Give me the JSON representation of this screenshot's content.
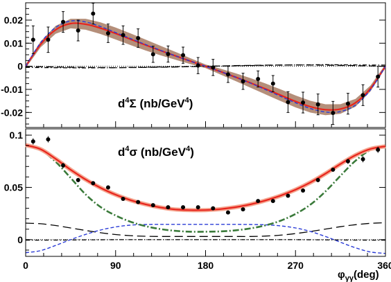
{
  "chart_data": [
    {
      "type": "scatter",
      "panel": "top",
      "label": {
        "prefix": "d",
        "sup1": "4",
        "symbol": "Σ",
        "unit": " (nb/GeV",
        "sup2": "4",
        "close": ")"
      },
      "xlim": [
        0,
        360
      ],
      "ylim": [
        -0.0265,
        0.0275
      ],
      "yticks": [
        {
          "v": 0.02,
          "label": "0.02"
        },
        {
          "v": 0.01,
          "label": "0.01"
        },
        {
          "v": 0,
          "label": "0"
        },
        {
          "v": -0.01,
          "label": "-0.01"
        },
        {
          "v": -0.02,
          "label": "-0.02"
        }
      ],
      "band_color": "#b58f7a",
      "points": [
        {
          "x": 7.5,
          "y": 0.0115,
          "err": 0.006
        },
        {
          "x": 22.5,
          "y": 0.0115,
          "err": 0.0055
        },
        {
          "x": 37.5,
          "y": 0.0192,
          "err": 0.0045
        },
        {
          "x": 52.5,
          "y": 0.0155,
          "err": 0.0045
        },
        {
          "x": 67.5,
          "y": 0.0228,
          "err": 0.0045
        },
        {
          "x": 82.5,
          "y": 0.0143,
          "err": 0.004
        },
        {
          "x": 97.5,
          "y": 0.0135,
          "err": 0.004
        },
        {
          "x": 112.5,
          "y": 0.0122,
          "err": 0.004
        },
        {
          "x": 127.5,
          "y": 0.0052,
          "err": 0.0035
        },
        {
          "x": 142.5,
          "y": 0.0053,
          "err": 0.0035
        },
        {
          "x": 157.5,
          "y": 0.0048,
          "err": 0.0035
        },
        {
          "x": 172.5,
          "y": 0.0003,
          "err": 0.0035
        },
        {
          "x": 187.5,
          "y": -0.0005,
          "err": 0.0035
        },
        {
          "x": 202.5,
          "y": -0.0035,
          "err": 0.0035
        },
        {
          "x": 217.5,
          "y": -0.0065,
          "err": 0.0035
        },
        {
          "x": 232.5,
          "y": -0.0055,
          "err": 0.0035
        },
        {
          "x": 247.5,
          "y": -0.0075,
          "err": 0.0035
        },
        {
          "x": 262.5,
          "y": -0.0155,
          "err": 0.0045
        },
        {
          "x": 277.5,
          "y": -0.0157,
          "err": 0.0045
        },
        {
          "x": 292.5,
          "y": -0.0165,
          "err": 0.0045
        },
        {
          "x": 307.5,
          "y": -0.0202,
          "err": 0.005
        },
        {
          "x": 322.5,
          "y": -0.0162,
          "err": 0.0045
        },
        {
          "x": 337.5,
          "y": -0.0125,
          "err": 0.0045
        },
        {
          "x": 352.5,
          "y": -0.0045,
          "err": 0.0045
        }
      ],
      "curves": {
        "full": {
          "x": [
            0,
            15,
            30,
            45,
            60,
            75,
            90,
            105,
            120,
            135,
            150,
            165,
            180,
            195,
            210,
            225,
            240,
            255,
            270,
            285,
            300,
            315,
            330,
            345,
            360
          ],
          "y": [
            0.0,
            0.0095,
            0.0158,
            0.0185,
            0.0182,
            0.0165,
            0.0142,
            0.0117,
            0.0092,
            0.0068,
            0.0045,
            0.0022,
            0.0,
            -0.0023,
            -0.0047,
            -0.0072,
            -0.0098,
            -0.0125,
            -0.0152,
            -0.0175,
            -0.0188,
            -0.0185,
            -0.0158,
            -0.0096,
            0.0
          ]
        },
        "alt": {
          "x": [
            0,
            15,
            30,
            45,
            60,
            75,
            90,
            105,
            120,
            135,
            150,
            165,
            180,
            195,
            210,
            225,
            240,
            255,
            270,
            285,
            300,
            315,
            330,
            345,
            360
          ],
          "y": [
            0.0,
            0.0102,
            0.0168,
            0.0196,
            0.0192,
            0.0172,
            0.0146,
            0.012,
            0.0094,
            0.0069,
            0.0045,
            0.0022,
            0.0,
            -0.0023,
            -0.0047,
            -0.0073,
            -0.0101,
            -0.013,
            -0.0158,
            -0.0183,
            -0.0198,
            -0.0196,
            -0.0168,
            -0.0102,
            0.0
          ]
        },
        "dashdot": {
          "x": [
            0,
            30,
            60,
            90,
            120,
            150,
            180,
            210,
            240,
            270,
            300,
            330,
            360
          ],
          "y": [
            -0.0005,
            -0.0006,
            -0.0007,
            -0.0006,
            -0.0004,
            -0.0002,
            0.0,
            0.0002,
            0.0004,
            0.0006,
            0.0007,
            0.0006,
            0.0005
          ]
        },
        "longdash": {
          "x": [
            0,
            30,
            60,
            90,
            120,
            150,
            180,
            210,
            240,
            270,
            300,
            330,
            360
          ],
          "y": [
            0.0,
            -0.0003,
            -0.0005,
            -0.0006,
            -0.0005,
            -0.0003,
            0.0,
            0.0003,
            0.0005,
            0.0006,
            0.0005,
            0.0003,
            0.0
          ]
        }
      }
    },
    {
      "type": "scatter",
      "panel": "bottom",
      "label": {
        "prefix": "d",
        "sup1": "4",
        "symbol": "σ",
        "unit": " (nb/GeV",
        "sup2": "4",
        "close": ")"
      },
      "xlim": [
        0,
        360
      ],
      "ylim": [
        -0.016,
        0.106
      ],
      "yticks": [
        {
          "v": 0.1,
          "label": "0.1"
        },
        {
          "v": 0.05,
          "label": "0.05"
        },
        {
          "v": 0,
          "label": "0"
        }
      ],
      "xticks": [
        {
          "v": 0,
          "label": "0"
        },
        {
          "v": 90,
          "label": "90"
        },
        {
          "v": 180,
          "label": "180"
        },
        {
          "v": 270,
          "label": "270"
        },
        {
          "v": 360,
          "label": "360"
        }
      ],
      "xlabel": {
        "phi": "φ",
        "sub": "γγ",
        "unit": "(deg)"
      },
      "points": [
        {
          "x": 7.5,
          "y": 0.094,
          "err": 0.003
        },
        {
          "x": 22.5,
          "y": 0.096,
          "err": 0.003
        },
        {
          "x": 37.5,
          "y": 0.071,
          "err": 0.0025
        },
        {
          "x": 52.5,
          "y": 0.057,
          "err": 0.002
        },
        {
          "x": 67.5,
          "y": 0.054,
          "err": 0.002
        },
        {
          "x": 82.5,
          "y": 0.05,
          "err": 0.002
        },
        {
          "x": 97.5,
          "y": 0.039,
          "err": 0.0015
        },
        {
          "x": 112.5,
          "y": 0.036,
          "err": 0.0015
        },
        {
          "x": 127.5,
          "y": 0.033,
          "err": 0.0015
        },
        {
          "x": 142.5,
          "y": 0.031,
          "err": 0.0015
        },
        {
          "x": 157.5,
          "y": 0.031,
          "err": 0.0015
        },
        {
          "x": 172.5,
          "y": 0.031,
          "err": 0.0015
        },
        {
          "x": 187.5,
          "y": 0.03,
          "err": 0.0015
        },
        {
          "x": 202.5,
          "y": 0.026,
          "err": 0.0015
        },
        {
          "x": 217.5,
          "y": 0.029,
          "err": 0.0015
        },
        {
          "x": 232.5,
          "y": 0.037,
          "err": 0.0015
        },
        {
          "x": 247.5,
          "y": 0.037,
          "err": 0.0015
        },
        {
          "x": 262.5,
          "y": 0.042,
          "err": 0.0015
        },
        {
          "x": 277.5,
          "y": 0.047,
          "err": 0.0015
        },
        {
          "x": 292.5,
          "y": 0.057,
          "err": 0.002
        },
        {
          "x": 307.5,
          "y": 0.067,
          "err": 0.002
        },
        {
          "x": 322.5,
          "y": 0.075,
          "err": 0.0025
        },
        {
          "x": 337.5,
          "y": 0.077,
          "err": 0.003
        },
        {
          "x": 352.5,
          "y": 0.086,
          "err": 0.003
        }
      ],
      "curves": {
        "full": {
          "x": [
            0,
            15,
            30,
            45,
            60,
            75,
            90,
            105,
            120,
            135,
            150,
            165,
            180,
            195,
            210,
            225,
            240,
            255,
            270,
            285,
            300,
            315,
            330,
            345,
            360
          ],
          "y": [
            0.0905,
            0.0865,
            0.0773,
            0.0669,
            0.0575,
            0.0496,
            0.043,
            0.0378,
            0.0338,
            0.0308,
            0.0289,
            0.0282,
            0.0283,
            0.0292,
            0.0311,
            0.0338,
            0.0375,
            0.0421,
            0.0478,
            0.0548,
            0.0632,
            0.0724,
            0.0808,
            0.0868,
            0.0893
          ]
        },
        "green": {
          "x": [
            0,
            15,
            30,
            45,
            60,
            75,
            90,
            105,
            120,
            135,
            150,
            165,
            180,
            195,
            210,
            225,
            240,
            255,
            270,
            285,
            300,
            315,
            330,
            345,
            360
          ],
          "y": [
            0.0905,
            0.086,
            0.0745,
            0.0591,
            0.0433,
            0.0312,
            0.0231,
            0.0171,
            0.0129,
            0.0101,
            0.0084,
            0.0076,
            0.0076,
            0.0079,
            0.0089,
            0.0108,
            0.0137,
            0.0181,
            0.0246,
            0.0336,
            0.0461,
            0.0611,
            0.0755,
            0.0858,
            0.0893
          ]
        },
        "blue": {
          "x": [
            0,
            15,
            30,
            45,
            60,
            75,
            90,
            105,
            120,
            135,
            150,
            165,
            180,
            195,
            210,
            225,
            240,
            255,
            270,
            285,
            300,
            315,
            330,
            345,
            360
          ],
          "y": [
            -0.0125,
            -0.0105,
            -0.0055,
            0.0,
            0.005,
            0.0092,
            0.0122,
            0.0139,
            0.0145,
            0.0146,
            0.0146,
            0.0146,
            0.0146,
            0.0146,
            0.0146,
            0.0145,
            0.0142,
            0.0132,
            0.0112,
            0.0078,
            0.003,
            -0.0025,
            -0.0078,
            -0.0118,
            -0.0132
          ]
        },
        "longdash": {
          "x": [
            0,
            15,
            30,
            45,
            60,
            75,
            90,
            105,
            120,
            135,
            150,
            165,
            180,
            195,
            210,
            225,
            240,
            255,
            270,
            285,
            300,
            315,
            330,
            345,
            360
          ],
          "y": [
            0.0158,
            0.0152,
            0.0135,
            0.0112,
            0.0088,
            0.0066,
            0.0049,
            0.0038,
            0.0032,
            0.003,
            0.003,
            0.003,
            0.003,
            0.003,
            0.003,
            0.003,
            0.0034,
            0.0043,
            0.0058,
            0.0078,
            0.0101,
            0.0124,
            0.0143,
            0.0156,
            0.0162
          ]
        },
        "dashdot": {
          "x": [
            0,
            30,
            60,
            90,
            120,
            150,
            180,
            210,
            240,
            270,
            300,
            330,
            360
          ],
          "y": [
            -0.0005,
            -0.0004,
            -0.0002,
            0.0,
            0.0,
            0.0,
            0.0,
            0.0,
            0.0,
            0.0,
            -0.0002,
            -0.0004,
            -0.0005
          ]
        }
      }
    }
  ]
}
